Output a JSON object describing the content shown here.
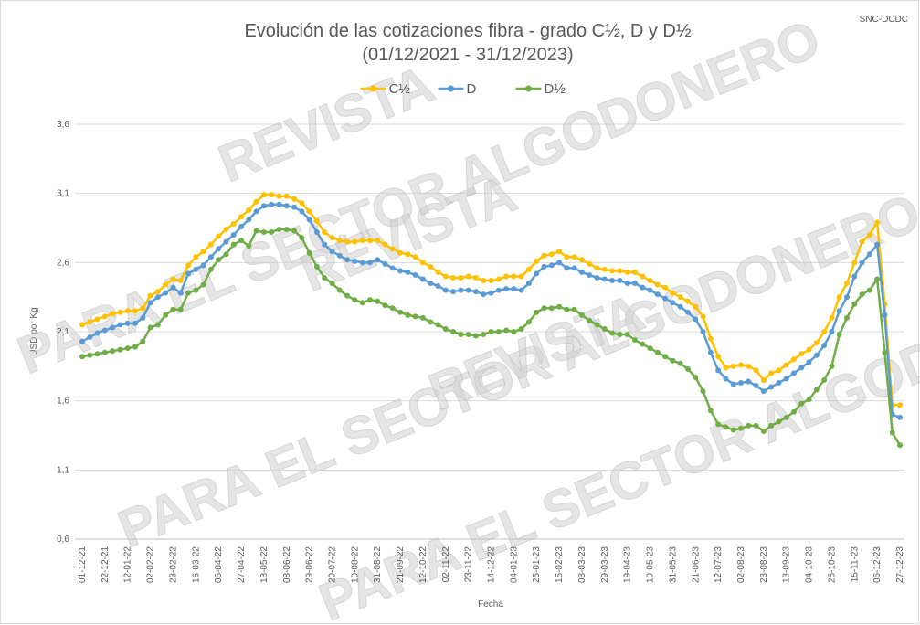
{
  "chart_data": {
    "type": "line",
    "title": "Evolución de las cotizaciones fibra - grado C½, D y D½",
    "subtitle": "(01/12/2021 - 31/12/2023)",
    "source": "SNC-DCDC",
    "watermark": [
      "REVISTA",
      "PARA EL SECTOR ALGODONERO"
    ],
    "x_label": "Fecha",
    "y_label": "USD por Kg",
    "categories": [
      "01-12-21",
      null,
      null,
      "22-12-21",
      null,
      null,
      "12-01-22",
      null,
      null,
      "02-02-22",
      null,
      null,
      "23-02-22",
      null,
      null,
      "16-03-22",
      null,
      null,
      "06-04-22",
      null,
      null,
      "27-04-22",
      null,
      null,
      "18-05-22",
      null,
      null,
      "08-06-22",
      null,
      null,
      "29-06-22",
      null,
      null,
      "20-07-22",
      null,
      null,
      "10-08-22",
      null,
      null,
      "31-08-22",
      null,
      null,
      "21-09-22",
      null,
      null,
      "12-10-22",
      null,
      null,
      "02-11-22",
      null,
      null,
      "23-11-22",
      null,
      null,
      "14-12-22",
      null,
      null,
      "04-01-23",
      null,
      null,
      "25-01-23",
      null,
      null,
      "15-02-23",
      null,
      null,
      "08-03-23",
      null,
      null,
      "29-03-23",
      null,
      null,
      "19-04-23",
      null,
      null,
      "10-05-23",
      null,
      null,
      "31-05-23",
      null,
      null,
      "21-06-23",
      null,
      null,
      "12-07-23",
      null,
      null,
      "02-08-23",
      null,
      null,
      "23-08-23",
      null,
      null,
      "13-09-23",
      null,
      null,
      "04-10-23",
      null,
      null,
      "25-10-23",
      null,
      null,
      "15-11-23",
      null,
      null,
      "06-12-23",
      null,
      null,
      "27-12-23"
    ],
    "series": [
      {
        "name": "C½",
        "color": "#ffc000",
        "values": [
          2.15,
          2.17,
          2.19,
          2.21,
          2.23,
          2.24,
          2.25,
          2.25,
          2.27,
          2.36,
          2.39,
          2.44,
          2.48,
          2.47,
          2.58,
          2.64,
          2.68,
          2.73,
          2.79,
          2.84,
          2.88,
          2.93,
          2.98,
          3.04,
          3.09,
          3.09,
          3.08,
          3.08,
          3.06,
          3.03,
          2.97,
          2.9,
          2.82,
          2.78,
          2.76,
          2.75,
          2.75,
          2.76,
          2.76,
          2.76,
          2.73,
          2.7,
          2.67,
          2.66,
          2.64,
          2.6,
          2.57,
          2.53,
          2.5,
          2.49,
          2.49,
          2.5,
          2.49,
          2.47,
          2.47,
          2.48,
          2.5,
          2.5,
          2.5,
          2.55,
          2.61,
          2.65,
          2.66,
          2.68,
          2.64,
          2.64,
          2.62,
          2.59,
          2.56,
          2.55,
          2.54,
          2.54,
          2.53,
          2.53,
          2.5,
          2.47,
          2.44,
          2.42,
          2.38,
          2.35,
          2.32,
          2.28,
          2.21,
          2.05,
          1.92,
          1.84,
          1.85,
          1.86,
          1.85,
          1.82,
          1.75,
          1.8,
          1.82,
          1.86,
          1.9,
          1.94,
          1.97,
          2.02,
          2.1,
          2.2,
          2.35,
          2.45,
          2.6,
          2.75,
          2.8,
          2.89,
          2.3,
          1.57,
          1.57
        ]
      },
      {
        "name": "D",
        "color": "#5b9bd5",
        "values": [
          2.03,
          2.06,
          2.09,
          2.11,
          2.13,
          2.15,
          2.16,
          2.16,
          2.2,
          2.31,
          2.35,
          2.38,
          2.42,
          2.38,
          2.52,
          2.55,
          2.58,
          2.64,
          2.7,
          2.75,
          2.8,
          2.86,
          2.91,
          2.97,
          3.01,
          3.02,
          3.02,
          3.01,
          3.0,
          2.97,
          2.91,
          2.82,
          2.73,
          2.68,
          2.65,
          2.62,
          2.61,
          2.6,
          2.6,
          2.62,
          2.59,
          2.56,
          2.54,
          2.53,
          2.51,
          2.48,
          2.45,
          2.43,
          2.4,
          2.39,
          2.4,
          2.4,
          2.39,
          2.37,
          2.38,
          2.4,
          2.41,
          2.41,
          2.4,
          2.45,
          2.52,
          2.57,
          2.58,
          2.6,
          2.56,
          2.56,
          2.53,
          2.51,
          2.49,
          2.48,
          2.47,
          2.47,
          2.45,
          2.45,
          2.42,
          2.4,
          2.37,
          2.34,
          2.31,
          2.28,
          2.24,
          2.19,
          2.1,
          1.95,
          1.82,
          1.76,
          1.72,
          1.73,
          1.74,
          1.71,
          1.67,
          1.7,
          1.73,
          1.76,
          1.8,
          1.84,
          1.88,
          1.93,
          2.0,
          2.1,
          2.25,
          2.35,
          2.5,
          2.6,
          2.66,
          2.73,
          2.22,
          1.5,
          1.48
        ]
      },
      {
        "name": "D½",
        "color": "#70ad47",
        "values": [
          1.92,
          1.93,
          1.94,
          1.95,
          1.96,
          1.97,
          1.98,
          1.99,
          2.03,
          2.13,
          2.15,
          2.22,
          2.26,
          2.26,
          2.38,
          2.4,
          2.44,
          2.55,
          2.62,
          2.66,
          2.73,
          2.76,
          2.72,
          2.83,
          2.82,
          2.82,
          2.84,
          2.84,
          2.83,
          2.78,
          2.67,
          2.57,
          2.49,
          2.45,
          2.4,
          2.36,
          2.33,
          2.31,
          2.33,
          2.32,
          2.29,
          2.27,
          2.24,
          2.22,
          2.21,
          2.2,
          2.17,
          2.15,
          2.12,
          2.1,
          2.08,
          2.08,
          2.07,
          2.08,
          2.1,
          2.1,
          2.11,
          2.1,
          2.12,
          2.17,
          2.24,
          2.27,
          2.27,
          2.28,
          2.26,
          2.26,
          2.22,
          2.18,
          2.15,
          2.12,
          2.09,
          2.08,
          2.08,
          2.04,
          2.01,
          1.98,
          1.95,
          1.92,
          1.89,
          1.87,
          1.83,
          1.77,
          1.67,
          1.53,
          1.43,
          1.41,
          1.39,
          1.4,
          1.42,
          1.42,
          1.38,
          1.42,
          1.45,
          1.48,
          1.52,
          1.58,
          1.61,
          1.68,
          1.75,
          1.85,
          2.08,
          2.2,
          2.3,
          2.37,
          2.4,
          2.48,
          1.95,
          1.37,
          1.28
        ]
      }
    ],
    "ylim": [
      0.6,
      3.6
    ],
    "yticks": [
      {
        "value": 0.6,
        "label": "0,6"
      },
      {
        "value": 1.1,
        "label": "1,1"
      },
      {
        "value": 1.6,
        "label": "1,6"
      },
      {
        "value": 2.1,
        "label": "2,1"
      },
      {
        "value": 2.6,
        "label": "2,6"
      },
      {
        "value": 3.1,
        "label": "3,1"
      },
      {
        "value": 3.6,
        "label": "3,6"
      }
    ],
    "grid": true,
    "legend": "top"
  }
}
